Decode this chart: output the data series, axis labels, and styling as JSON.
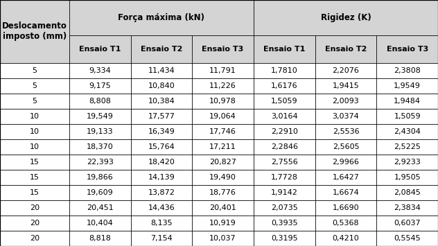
{
  "col0_header_line1": "Deslocamento",
  "col0_header_line2": "imposto (mm)",
  "group1_header": "Força máxima (kN)",
  "group2_header": "Rigidez (K)",
  "sub_headers": [
    "Ensaio T1",
    "Ensaio T2",
    "Ensaio T3",
    "Ensaio T1",
    "Ensaio T2",
    "Ensaio T3"
  ],
  "rows": [
    [
      "5",
      "9,334",
      "11,434",
      "11,791",
      "1,7810",
      "2,2076",
      "2,3808"
    ],
    [
      "5",
      "9,175",
      "10,840",
      "11,226",
      "1,6176",
      "1,9415",
      "1,9549"
    ],
    [
      "5",
      "8,808",
      "10,384",
      "10,978",
      "1,5059",
      "2,0093",
      "1,9484"
    ],
    [
      "10",
      "19,549",
      "17,577",
      "19,064",
      "3,0164",
      "3,0374",
      "1,5059"
    ],
    [
      "10",
      "19,133",
      "16,349",
      "17,746",
      "2,2910",
      "2,5536",
      "2,4304"
    ],
    [
      "10",
      "18,370",
      "15,764",
      "17,211",
      "2,2846",
      "2,5605",
      "2,5225"
    ],
    [
      "15",
      "22,393",
      "18,420",
      "20,827",
      "2,7556",
      "2,9966",
      "2,9233"
    ],
    [
      "15",
      "19,866",
      "14,139",
      "19,490",
      "1,7728",
      "1,6427",
      "1,9505"
    ],
    [
      "15",
      "19,609",
      "13,872",
      "18,776",
      "1,9142",
      "1,6674",
      "2,0845"
    ],
    [
      "20",
      "20,451",
      "14,436",
      "20,401",
      "2,0735",
      "1,6690",
      "2,3834"
    ],
    [
      "20",
      "10,404",
      "8,135",
      "10,919",
      "0,3935",
      "0,5368",
      "0,6037"
    ],
    [
      "20",
      "8,818",
      "7,154",
      "10,037",
      "0,3195",
      "0,4210",
      "0,5545"
    ]
  ],
  "bg_header": "#d4d4d4",
  "bg_row": "#ffffff",
  "text_color": "#000000",
  "border_color": "#000000",
  "font_size": 8.0,
  "header_font_size": 8.5,
  "subheader_font_size": 8.0
}
